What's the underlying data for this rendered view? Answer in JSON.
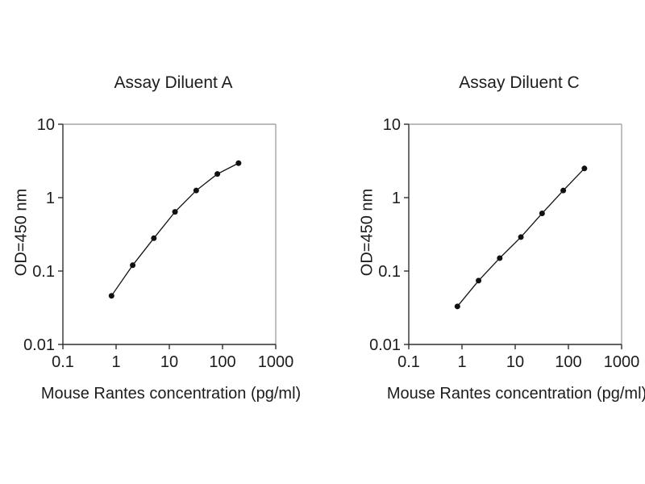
{
  "figure": {
    "background": "#ffffff",
    "text_color": "#1c1c1c",
    "axis_color": "#2f2f2f",
    "border_color": "#a5a5a5",
    "marker_color": "#111111"
  },
  "chart_data": [
    {
      "type": "scatter",
      "title": "Assay Diluent A",
      "xlabel": "Mouse Rantes concentration (pg/ml)",
      "ylabel": "OD=450 nm",
      "xscale": "log",
      "yscale": "log",
      "xlim": [
        0.1,
        1000
      ],
      "ylim": [
        0.01,
        10
      ],
      "x_ticks": [
        0.1,
        1,
        10,
        100,
        1000
      ],
      "x_tick_labels": [
        "0.1",
        "1",
        "10",
        "100",
        "1000"
      ],
      "y_ticks": [
        0.01,
        0.1,
        1,
        10
      ],
      "y_tick_labels": [
        "0.01",
        "0.1",
        "1",
        "10"
      ],
      "grid": false,
      "legend": null,
      "marker": "filled-circle",
      "line": true,
      "x": [
        0.82,
        2.05,
        5.12,
        12.8,
        32,
        80,
        200
      ],
      "y": [
        0.046,
        0.12,
        0.28,
        0.64,
        1.25,
        2.1,
        2.95
      ]
    },
    {
      "type": "scatter",
      "title": "Assay Diluent C",
      "xlabel": "Mouse Rantes concentration (pg/ml)",
      "ylabel": "OD=450 nm",
      "xscale": "log",
      "yscale": "log",
      "xlim": [
        0.1,
        1000
      ],
      "ylim": [
        0.01,
        10
      ],
      "x_ticks": [
        0.1,
        1,
        10,
        100,
        1000
      ],
      "x_tick_labels": [
        "0.1",
        "1",
        "10",
        "100",
        "1000"
      ],
      "y_ticks": [
        0.01,
        0.1,
        1,
        10
      ],
      "y_tick_labels": [
        "0.01",
        "0.1",
        "1",
        "10"
      ],
      "grid": false,
      "legend": null,
      "marker": "filled-circle",
      "line": true,
      "x": [
        0.82,
        2.05,
        5.12,
        12.8,
        32,
        80,
        200
      ],
      "y": [
        0.033,
        0.074,
        0.15,
        0.29,
        0.61,
        1.25,
        2.5
      ]
    }
  ]
}
